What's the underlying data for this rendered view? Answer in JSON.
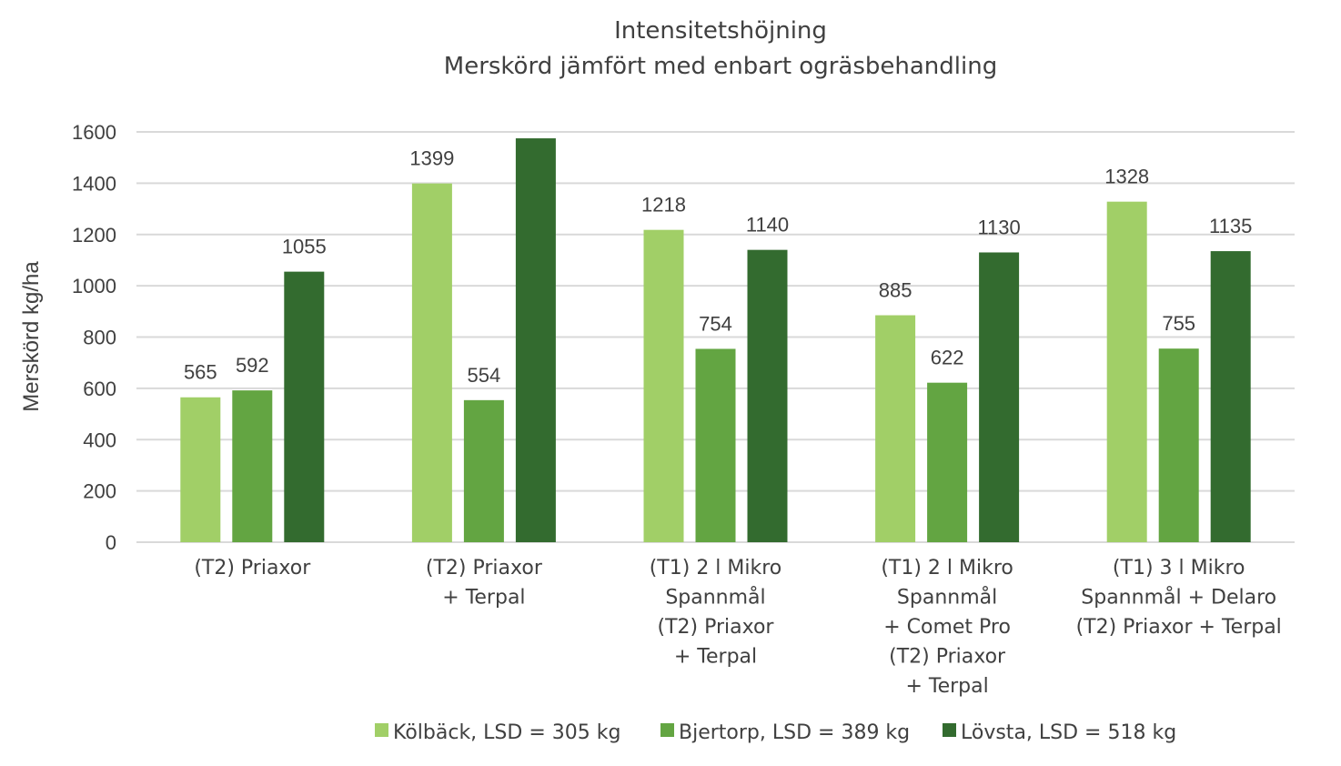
{
  "chart_data": {
    "type": "bar",
    "title": "Intensitetshöjning",
    "subtitle": "Merskörd jämfört med enbart ogräsbehandling",
    "xlabel": "",
    "ylabel": "Merskörd kg/ha",
    "ylim": [
      0,
      1600
    ],
    "yticks": [
      0,
      200,
      400,
      600,
      800,
      1000,
      1200,
      1400,
      1600
    ],
    "grid": true,
    "legend_position": "bottom",
    "categories": [
      [
        "(T2) Priaxor"
      ],
      [
        "(T2) Priaxor",
        "+ Terpal"
      ],
      [
        "(T1) 2 l Mikro",
        "Spannmål",
        "(T2) Priaxor",
        "+ Terpal"
      ],
      [
        "(T1) 2 l Mikro",
        "Spannmål",
        "+ Comet Pro",
        "(T2) Priaxor",
        "+ Terpal"
      ],
      [
        "(T1) 3 l Mikro",
        "Spannmål + Delaro",
        "(T2) Priaxor + Terpal"
      ]
    ],
    "series": [
      {
        "name": "Kölbäck, LSD = 305 kg",
        "color": "#a1cf67",
        "values": [
          565,
          1399,
          1218,
          885,
          1328
        ],
        "labels": [
          "565",
          "1399",
          "1218",
          "885",
          "1328"
        ]
      },
      {
        "name": "Bjertorp, LSD = 389 kg",
        "color": "#63a542",
        "values": [
          592,
          554,
          754,
          622,
          755
        ],
        "labels": [
          "592",
          "554",
          "754",
          "622",
          "755"
        ]
      },
      {
        "name": "Lövsta, LSD = 518 kg",
        "color": "#336b2f",
        "values": [
          1055,
          1575,
          1140,
          1130,
          1135
        ],
        "labels": [
          "1055",
          "",
          "1140",
          "1130",
          "1135"
        ]
      }
    ]
  }
}
